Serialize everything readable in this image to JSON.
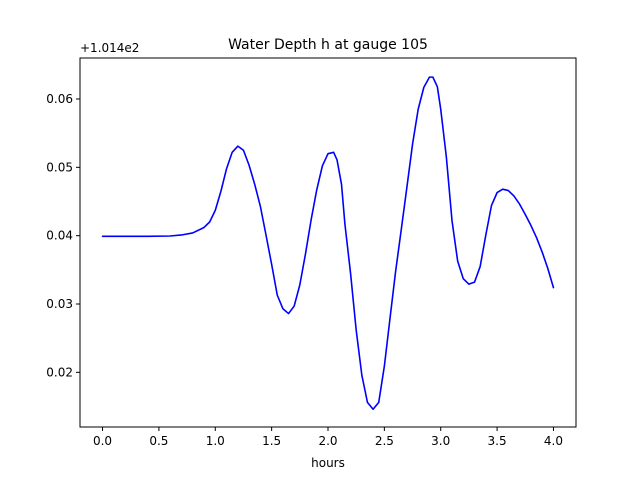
{
  "chart_data": {
    "type": "line",
    "title": "Water Depth h at gauge 105",
    "xlabel": "hours",
    "ylabel": "",
    "offset_label": "+1.014e2",
    "y_offset": 101.4,
    "xlim": [
      -0.2,
      4.2
    ],
    "ylim": [
      0.012,
      0.066
    ],
    "xticks": [
      0.0,
      0.5,
      1.0,
      1.5,
      2.0,
      2.5,
      3.0,
      3.5,
      4.0
    ],
    "xtick_labels": [
      "0.0",
      "0.5",
      "1.0",
      "1.5",
      "2.0",
      "2.5",
      "3.0",
      "3.5",
      "4.0"
    ],
    "yticks": [
      0.02,
      0.03,
      0.04,
      0.05,
      0.06
    ],
    "ytick_labels": [
      "0.02",
      "0.03",
      "0.04",
      "0.05",
      "0.06"
    ],
    "grid": false,
    "line_color": "#0000ff",
    "series": [
      {
        "x": [
          0.0,
          0.2,
          0.4,
          0.6,
          0.7,
          0.8,
          0.9,
          0.95,
          1.0,
          1.05,
          1.1,
          1.15,
          1.2,
          1.25,
          1.3,
          1.35,
          1.4,
          1.45,
          1.5,
          1.55,
          1.6,
          1.65,
          1.7,
          1.75,
          1.8,
          1.85,
          1.9,
          1.95,
          2.0,
          2.05,
          2.08,
          2.12,
          2.15,
          2.2,
          2.25,
          2.3,
          2.35,
          2.4,
          2.45,
          2.5,
          2.55,
          2.6,
          2.65,
          2.7,
          2.75,
          2.8,
          2.85,
          2.9,
          2.93,
          2.97,
          3.0,
          3.05,
          3.1,
          3.15,
          3.2,
          3.25,
          3.3,
          3.35,
          3.4,
          3.45,
          3.5,
          3.55,
          3.6,
          3.65,
          3.7,
          3.75,
          3.8,
          3.85,
          3.9,
          3.95,
          4.0
        ],
        "y": [
          0.0399,
          0.0399,
          0.0399,
          0.03995,
          0.0401,
          0.0404,
          0.0412,
          0.042,
          0.0437,
          0.0465,
          0.0498,
          0.0522,
          0.0531,
          0.0525,
          0.0503,
          0.0475,
          0.0443,
          0.0401,
          0.0358,
          0.0313,
          0.0293,
          0.0286,
          0.0297,
          0.0328,
          0.0373,
          0.0423,
          0.0467,
          0.0502,
          0.052,
          0.0522,
          0.0511,
          0.0475,
          0.0417,
          0.0345,
          0.0262,
          0.0196,
          0.0156,
          0.0146,
          0.0156,
          0.0209,
          0.0279,
          0.0348,
          0.0409,
          0.0471,
          0.0534,
          0.0585,
          0.0617,
          0.0632,
          0.0632,
          0.0618,
          0.0585,
          0.0515,
          0.0422,
          0.0363,
          0.0337,
          0.0329,
          0.0332,
          0.0355,
          0.0401,
          0.0444,
          0.0463,
          0.0468,
          0.0466,
          0.0458,
          0.0446,
          0.0431,
          0.0415,
          0.0397,
          0.0376,
          0.0352,
          0.0324
        ]
      }
    ]
  }
}
